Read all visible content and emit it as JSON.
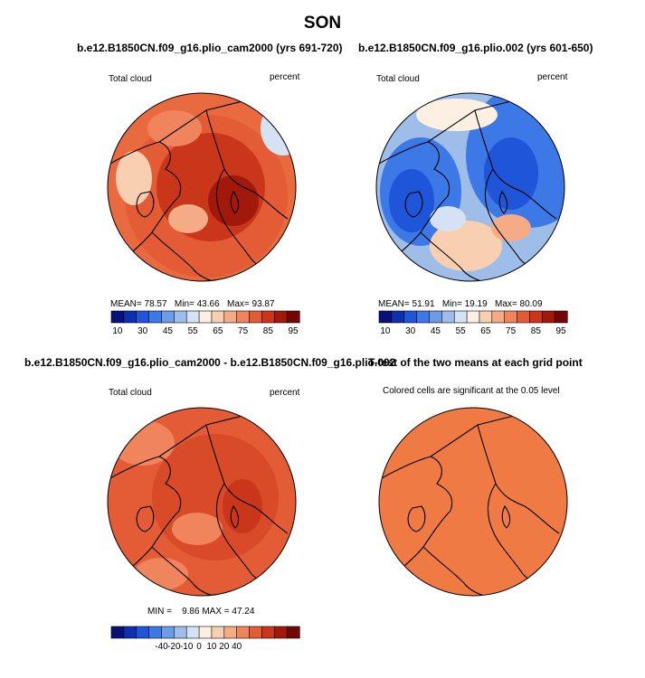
{
  "figure": {
    "title": "SON"
  },
  "colors": {
    "abs_scale": [
      "#08107a",
      "#0d2fb0",
      "#1f55d8",
      "#3c78e6",
      "#6c9be8",
      "#9fbde9",
      "#d4e2f3",
      "#fdf0e3",
      "#f9cfb1",
      "#f5ab86",
      "#f0845c",
      "#e45c35",
      "#c9361a",
      "#a2190b",
      "#730706"
    ],
    "diff_scale": [
      "#08107a",
      "#0d2fb0",
      "#1f55d8",
      "#3c78e6",
      "#6c9be8",
      "#9fbde9",
      "#d4e2f3",
      "#fdf0e3",
      "#f9cfb1",
      "#f5ab86",
      "#f0845c",
      "#e45c35",
      "#c9361a",
      "#a2190b",
      "#730706"
    ],
    "signif_fill": "#f07a44"
  },
  "chart_data": [
    {
      "type": "heatmap",
      "projection": "polar-stereographic",
      "title": "b.e12.B1850CN.f09_g16.plio_cam2000 (yrs 691-720)",
      "left_label": "Total cloud",
      "right_label": "percent",
      "stats": {
        "mean_label": "MEAN=",
        "mean": "78.57",
        "min_label": "Min=",
        "min": "43.66",
        "max_label": "Max=",
        "max": "93.87"
      },
      "colorbar": {
        "levels": [
          10,
          30,
          45,
          55,
          65,
          75,
          85,
          95
        ],
        "tick_labels": [
          "10",
          "30",
          "45",
          "55",
          "65",
          "75",
          "85",
          "95"
        ]
      }
    },
    {
      "type": "heatmap",
      "projection": "polar-stereographic",
      "title": "b.e12.B1850CN.f09_g16.plio.002 (yrs 601-650)",
      "left_label": "Total cloud",
      "right_label": "percent",
      "stats": {
        "mean_label": "MEAN=",
        "mean": "51.91",
        "min_label": "Min=",
        "min": "19.19",
        "max_label": "Max=",
        "max": "80.09"
      },
      "colorbar": {
        "levels": [
          10,
          30,
          45,
          55,
          65,
          75,
          85,
          95
        ],
        "tick_labels": [
          "10",
          "30",
          "45",
          "55",
          "65",
          "75",
          "85",
          "95"
        ]
      }
    },
    {
      "type": "heatmap",
      "projection": "polar-stereographic",
      "title": "b.e12.B1850CN.f09_g16.plio_cam2000 - b.e12.B1850CN.f09_g16.plio.002",
      "left_label": "Total cloud",
      "right_label": "percent",
      "stats": {
        "min_label": "MIN =",
        "min": "9.86",
        "max_label": "MAX =",
        "max": "47.24"
      },
      "colorbar": {
        "levels": [
          -40,
          -20,
          -10,
          0,
          10,
          20,
          40
        ],
        "tick_labels": [
          "-40",
          "-20",
          "-10",
          "0",
          "10",
          "20",
          "40"
        ]
      }
    },
    {
      "type": "heatmap",
      "projection": "polar-stereographic",
      "title": "T-test of the two means at each grid point",
      "subtitle": "Colored cells are significant at the 0.05 level"
    }
  ]
}
